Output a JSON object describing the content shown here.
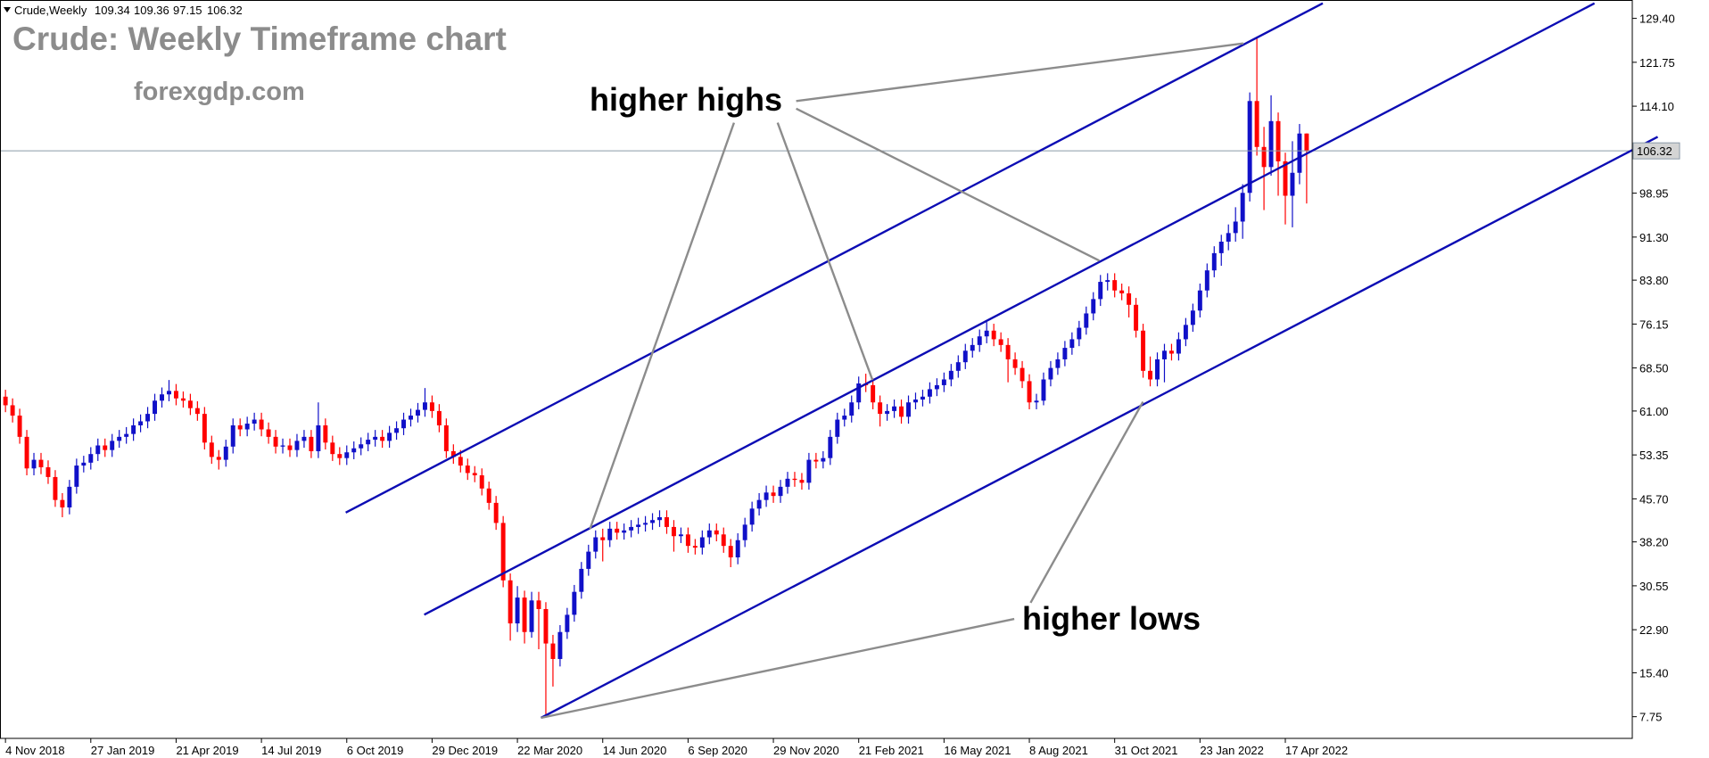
{
  "header": {
    "symbol": "Crude,Weekly"
  },
  "chart_data": {
    "type": "candlestick",
    "title": "Crude: Weekly Timeframe chart",
    "subtitle": "forexgdp.com",
    "annotations": [
      "higher highs",
      "higher lows"
    ],
    "up_color": "#1010c8",
    "down_color": "#ff0000",
    "candles": [
      [
        63.5,
        64.7,
        60.8,
        62.0
      ],
      [
        62.0,
        63.2,
        59.0,
        60.2
      ],
      [
        60.2,
        61.4,
        55.3,
        56.5
      ],
      [
        56.5,
        57.7,
        49.8,
        51.0
      ],
      [
        51.0,
        53.7,
        49.8,
        52.5
      ],
      [
        52.5,
        53.7,
        50.0,
        51.2
      ],
      [
        51.2,
        52.4,
        48.3,
        49.5
      ],
      [
        49.5,
        50.7,
        44.3,
        45.5
      ],
      [
        45.5,
        46.7,
        42.5,
        44.2
      ],
      [
        44.2,
        49.0,
        43.0,
        47.8
      ],
      [
        47.8,
        52.7,
        46.6,
        51.5
      ],
      [
        51.5,
        53.2,
        50.3,
        52.0
      ],
      [
        52.0,
        54.7,
        50.8,
        53.5
      ],
      [
        53.5,
        56.2,
        52.3,
        55.0
      ],
      [
        55.0,
        56.2,
        53.0,
        54.2
      ],
      [
        54.2,
        57.0,
        53.0,
        55.8
      ],
      [
        55.8,
        57.7,
        54.6,
        56.5
      ],
      [
        56.5,
        58.2,
        55.3,
        57.0
      ],
      [
        57.0,
        59.7,
        55.8,
        58.5
      ],
      [
        58.5,
        60.4,
        57.3,
        59.2
      ],
      [
        59.2,
        61.7,
        58.0,
        60.5
      ],
      [
        60.5,
        64.0,
        59.3,
        62.8
      ],
      [
        62.8,
        65.1,
        61.6,
        63.9
      ],
      [
        63.9,
        66.4,
        62.7,
        64.5
      ],
      [
        64.5,
        65.7,
        62.0,
        63.2
      ],
      [
        63.2,
        64.4,
        61.6,
        62.8
      ],
      [
        62.8,
        64.0,
        60.3,
        61.5
      ],
      [
        61.5,
        62.7,
        59.3,
        60.5
      ],
      [
        60.5,
        61.7,
        54.3,
        55.5
      ],
      [
        55.5,
        56.7,
        51.8,
        53.0
      ],
      [
        53.0,
        54.2,
        50.8,
        52.5
      ],
      [
        52.5,
        56.0,
        51.3,
        54.8
      ],
      [
        54.8,
        59.7,
        53.6,
        58.5
      ],
      [
        58.5,
        59.7,
        56.6,
        57.8
      ],
      [
        57.8,
        60.0,
        56.6,
        58.8
      ],
      [
        58.8,
        60.7,
        57.6,
        59.5
      ],
      [
        59.5,
        60.7,
        56.6,
        57.8
      ],
      [
        57.8,
        59.0,
        55.3,
        56.5
      ],
      [
        56.5,
        57.7,
        53.6,
        54.8
      ],
      [
        54.8,
        56.2,
        53.6,
        55.0
      ],
      [
        55.0,
        56.2,
        53.0,
        54.2
      ],
      [
        54.2,
        57.0,
        53.0,
        55.8
      ],
      [
        55.8,
        57.7,
        54.6,
        56.5
      ],
      [
        56.5,
        57.7,
        52.8,
        54.0
      ],
      [
        54.0,
        62.5,
        52.8,
        58.5
      ],
      [
        58.5,
        59.7,
        54.3,
        55.5
      ],
      [
        55.5,
        56.7,
        52.3,
        53.5
      ],
      [
        53.5,
        54.7,
        51.6,
        52.8
      ],
      [
        52.8,
        55.0,
        51.6,
        53.8
      ],
      [
        53.8,
        55.7,
        52.6,
        54.5
      ],
      [
        54.5,
        56.4,
        53.3,
        55.2
      ],
      [
        55.2,
        57.2,
        54.0,
        56.0
      ],
      [
        56.0,
        57.7,
        54.8,
        56.5
      ],
      [
        56.5,
        57.7,
        54.6,
        55.8
      ],
      [
        55.8,
        58.4,
        54.6,
        57.2
      ],
      [
        57.2,
        59.2,
        56.0,
        58.0
      ],
      [
        58.0,
        60.7,
        56.8,
        59.5
      ],
      [
        59.5,
        61.4,
        58.3,
        60.2
      ],
      [
        60.2,
        62.4,
        59.0,
        61.2
      ],
      [
        61.2,
        65.0,
        60.0,
        62.5
      ],
      [
        62.5,
        63.7,
        59.8,
        61.0
      ],
      [
        61.0,
        62.2,
        57.3,
        58.5
      ],
      [
        58.5,
        59.7,
        52.8,
        54.0
      ],
      [
        54.0,
        55.2,
        51.8,
        53.0
      ],
      [
        53.0,
        54.2,
        50.3,
        51.5
      ],
      [
        51.5,
        52.7,
        49.0,
        50.2
      ],
      [
        50.2,
        51.4,
        48.6,
        49.8
      ],
      [
        49.8,
        51.0,
        46.3,
        47.5
      ],
      [
        47.5,
        48.7,
        43.8,
        45.0
      ],
      [
        45.0,
        46.2,
        40.3,
        41.5
      ],
      [
        41.5,
        42.7,
        30.3,
        31.5
      ],
      [
        31.5,
        32.7,
        21.0,
        24.0
      ],
      [
        24.0,
        30.5,
        22.5,
        28.5
      ],
      [
        28.5,
        29.7,
        20.5,
        22.5
      ],
      [
        22.5,
        29.5,
        21.5,
        28.0
      ],
      [
        28.0,
        29.5,
        19.5,
        26.5
      ],
      [
        26.5,
        27.7,
        8.0,
        20.5
      ],
      [
        20.5,
        22.0,
        13.0,
        17.8
      ],
      [
        17.8,
        23.7,
        16.5,
        22.5
      ],
      [
        22.5,
        26.7,
        21.3,
        25.5
      ],
      [
        25.5,
        30.7,
        24.3,
        29.5
      ],
      [
        29.5,
        34.7,
        28.3,
        33.5
      ],
      [
        33.5,
        37.7,
        32.3,
        36.5
      ],
      [
        36.5,
        40.2,
        35.3,
        39.0
      ],
      [
        39.0,
        40.5,
        34.8,
        38.5
      ],
      [
        38.5,
        41.7,
        37.3,
        40.5
      ],
      [
        40.5,
        41.7,
        38.6,
        39.8
      ],
      [
        39.8,
        41.4,
        38.6,
        40.2
      ],
      [
        40.2,
        42.0,
        39.0,
        40.8
      ],
      [
        40.8,
        42.4,
        39.6,
        41.2
      ],
      [
        41.2,
        42.7,
        40.0,
        41.5
      ],
      [
        41.5,
        43.2,
        40.3,
        42.0
      ],
      [
        42.0,
        43.7,
        40.8,
        42.5
      ],
      [
        42.5,
        43.7,
        39.6,
        40.8
      ],
      [
        40.8,
        42.0,
        36.5,
        39.2
      ],
      [
        39.2,
        40.7,
        38.0,
        39.5
      ],
      [
        39.5,
        40.7,
        36.3,
        37.5
      ],
      [
        37.5,
        38.7,
        36.0,
        37.2
      ],
      [
        37.2,
        40.2,
        36.0,
        39.0
      ],
      [
        39.0,
        41.4,
        37.8,
        40.2
      ],
      [
        40.2,
        41.4,
        38.3,
        39.5
      ],
      [
        39.5,
        40.7,
        36.3,
        37.5
      ],
      [
        37.5,
        38.7,
        33.8,
        35.5
      ],
      [
        35.5,
        39.7,
        34.3,
        38.5
      ],
      [
        38.5,
        42.4,
        37.3,
        41.2
      ],
      [
        41.2,
        45.2,
        40.0,
        44.0
      ],
      [
        44.0,
        46.7,
        42.8,
        45.5
      ],
      [
        45.5,
        48.0,
        44.3,
        46.8
      ],
      [
        46.8,
        48.0,
        45.0,
        46.2
      ],
      [
        46.2,
        49.0,
        45.0,
        47.8
      ],
      [
        47.8,
        50.4,
        46.6,
        49.2
      ],
      [
        49.2,
        50.4,
        47.8,
        49.0
      ],
      [
        49.0,
        50.2,
        47.3,
        48.5
      ],
      [
        48.5,
        53.7,
        47.3,
        52.5
      ],
      [
        52.5,
        53.7,
        51.0,
        52.2
      ],
      [
        52.2,
        54.0,
        51.0,
        52.8
      ],
      [
        52.8,
        57.7,
        51.6,
        56.5
      ],
      [
        56.5,
        60.7,
        55.3,
        59.5
      ],
      [
        59.5,
        61.4,
        58.3,
        60.2
      ],
      [
        60.2,
        63.7,
        59.0,
        62.5
      ],
      [
        62.5,
        67.0,
        61.3,
        65.8
      ],
      [
        65.8,
        67.5,
        64.3,
        65.5
      ],
      [
        65.5,
        66.7,
        61.3,
        62.5
      ],
      [
        62.5,
        63.7,
        58.3,
        60.5
      ],
      [
        60.5,
        62.2,
        59.3,
        61.0
      ],
      [
        61.0,
        63.0,
        59.8,
        61.8
      ],
      [
        61.8,
        63.0,
        58.8,
        60.0
      ],
      [
        60.0,
        63.7,
        58.8,
        62.5
      ],
      [
        62.5,
        64.2,
        61.3,
        63.0
      ],
      [
        63.0,
        64.7,
        61.8,
        63.5
      ],
      [
        63.5,
        66.0,
        62.3,
        64.8
      ],
      [
        64.8,
        66.7,
        63.6,
        65.5
      ],
      [
        65.5,
        67.7,
        64.3,
        66.5
      ],
      [
        66.5,
        69.2,
        65.3,
        68.0
      ],
      [
        68.0,
        70.7,
        66.8,
        69.5
      ],
      [
        69.5,
        72.7,
        68.3,
        71.5
      ],
      [
        71.5,
        73.7,
        70.3,
        72.5
      ],
      [
        72.5,
        75.2,
        71.3,
        74.0
      ],
      [
        74.0,
        76.5,
        72.8,
        75.0
      ],
      [
        75.0,
        76.2,
        72.3,
        73.5
      ],
      [
        73.5,
        74.7,
        71.3,
        72.5
      ],
      [
        72.5,
        73.7,
        66.0,
        70.0
      ],
      [
        70.0,
        71.2,
        67.3,
        68.5
      ],
      [
        68.5,
        69.7,
        65.0,
        66.2
      ],
      [
        66.2,
        67.4,
        61.3,
        62.5
      ],
      [
        62.5,
        64.0,
        61.3,
        62.8
      ],
      [
        62.8,
        67.7,
        62.0,
        66.5
      ],
      [
        66.5,
        69.7,
        65.3,
        68.5
      ],
      [
        68.5,
        71.2,
        67.3,
        70.0
      ],
      [
        70.0,
        73.2,
        68.8,
        72.0
      ],
      [
        72.0,
        74.7,
        70.8,
        73.5
      ],
      [
        73.5,
        76.7,
        72.3,
        75.5
      ],
      [
        75.5,
        79.2,
        74.3,
        78.0
      ],
      [
        78.0,
        81.7,
        76.8,
        80.5
      ],
      [
        80.5,
        84.7,
        79.3,
        83.5
      ],
      [
        83.5,
        85.0,
        82.0,
        83.8
      ],
      [
        83.8,
        85.0,
        80.8,
        82.0
      ],
      [
        82.0,
        83.2,
        80.3,
        81.5
      ],
      [
        81.5,
        82.7,
        77.3,
        79.5
      ],
      [
        79.5,
        80.7,
        73.8,
        75.0
      ],
      [
        75.0,
        76.2,
        66.8,
        68.0
      ],
      [
        68.0,
        70.5,
        65.3,
        66.5
      ],
      [
        66.5,
        71.2,
        65.3,
        70.0
      ],
      [
        70.0,
        72.7,
        66.0,
        71.5
      ],
      [
        71.5,
        72.7,
        69.8,
        71.0
      ],
      [
        71.0,
        74.7,
        69.8,
        73.5
      ],
      [
        73.5,
        77.2,
        72.3,
        76.0
      ],
      [
        76.0,
        79.7,
        74.8,
        78.5
      ],
      [
        78.5,
        83.2,
        77.3,
        82.0
      ],
      [
        82.0,
        86.7,
        80.8,
        85.5
      ],
      [
        85.5,
        89.7,
        84.3,
        88.5
      ],
      [
        88.5,
        91.7,
        86.3,
        90.5
      ],
      [
        90.5,
        93.5,
        89.0,
        92.0
      ],
      [
        92.0,
        96.5,
        90.5,
        94.0
      ],
      [
        94.0,
        100.5,
        91.0,
        99.0
      ],
      [
        99.0,
        116.5,
        97.5,
        115.0
      ],
      [
        115.0,
        126.0,
        105.5,
        107.0
      ],
      [
        107.0,
        110.5,
        96.0,
        103.5
      ],
      [
        103.5,
        116.0,
        102.0,
        111.5
      ],
      [
        111.5,
        113.0,
        98.5,
        104.5
      ],
      [
        104.5,
        106.0,
        93.5,
        98.5
      ],
      [
        98.5,
        108.0,
        93.0,
        102.5
      ],
      [
        102.5,
        111.0,
        100.5,
        109.34
      ],
      [
        109.34,
        109.36,
        97.15,
        106.32
      ]
    ],
    "ylim": [
      3.97,
      132.6
    ],
    "yticks": [
      {
        "value": 129.4,
        "label": "129.40"
      },
      121.75,
      {
        "value": 114.1,
        "label": "114.10"
      },
      98.95,
      {
        "value": 91.3,
        "label": "91.30"
      },
      {
        "value": 83.8,
        "label": "83.80"
      },
      76.15,
      {
        "value": 68.5,
        "label": "68.50"
      },
      {
        "value": 61,
        "label": "61.00"
      },
      53.35,
      {
        "value": 45.7,
        "label": "45.70"
      },
      {
        "value": 38.2,
        "label": "38.20"
      },
      30.55,
      {
        "value": 22.9,
        "label": "22.90"
      },
      {
        "value": 15.4,
        "label": "15.40"
      },
      7.75
    ],
    "xlim": [
      -0.77,
      228.8
    ],
    "xticks": [
      {
        "value": 0,
        "label": "4 Nov 2018"
      },
      {
        "value": 12,
        "label": "27 Jan 2019"
      },
      {
        "value": 24,
        "label": "21 Apr 2019"
      },
      {
        "value": 36,
        "label": "14 Jul 2019"
      },
      {
        "value": 48,
        "label": "6 Oct 2019"
      },
      {
        "value": 60,
        "label": "29 Dec 2019"
      },
      {
        "value": 72,
        "label": "22 Mar 2020"
      },
      {
        "value": 84,
        "label": "14 Jun 2020"
      },
      {
        "value": 96,
        "label": "6 Sep 2020"
      },
      {
        "value": 108,
        "label": "29 Nov 2020"
      },
      {
        "value": 120,
        "label": "21 Feb 2021"
      },
      {
        "value": 132,
        "label": "16 May 2021"
      },
      {
        "value": 144,
        "label": "8 Aug 2021"
      },
      {
        "value": 156,
        "label": "31 Oct 2021"
      },
      {
        "value": 168,
        "label": "23 Jan 2022"
      },
      {
        "value": 180,
        "label": "17 Apr 2022"
      }
    ]
  }
}
